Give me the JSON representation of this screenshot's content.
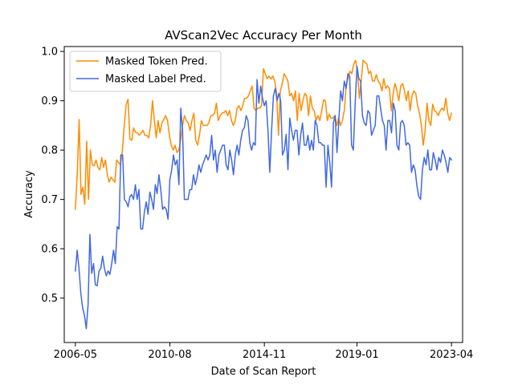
{
  "chart_data": {
    "type": "line",
    "title": "AVScan2Vec Accuracy Per Month",
    "xlabel": "Date of Scan Report",
    "ylabel": "Accuracy",
    "x_start": "2006-05",
    "x_end": "2023-04",
    "xlim": [
      "2005-11",
      "2023-10"
    ],
    "ylim": [
      0.41,
      1.01
    ],
    "x_ticks": [
      "2006-05",
      "2010-08",
      "2014-11",
      "2019-01",
      "2023-04"
    ],
    "y_ticks": [
      0.5,
      0.6,
      0.7,
      0.8,
      0.9,
      1.0
    ],
    "y_tick_labels": [
      "0.5",
      "0.6",
      "0.7",
      "0.8",
      "0.9",
      "1.0"
    ],
    "legend_position": "top-left",
    "grid": false,
    "series": [
      {
        "name": "Masked Token Pred.",
        "color": "#ff8c00",
        "values": [
          0.68,
          0.75,
          0.862,
          0.71,
          0.725,
          0.69,
          0.818,
          0.7,
          0.8,
          0.77,
          0.768,
          0.78,
          0.765,
          0.76,
          0.785,
          0.765,
          0.78,
          0.75,
          0.735,
          0.745,
          0.74,
          0.735,
          0.78,
          0.775,
          0.77,
          0.8,
          0.85,
          0.892,
          0.903,
          0.822,
          0.82,
          0.845,
          0.836,
          0.835,
          0.83,
          0.835,
          0.84,
          0.83,
          0.83,
          0.825,
          0.85,
          0.9,
          0.86,
          0.825,
          0.86,
          0.835,
          0.855,
          0.862,
          0.87,
          0.86,
          0.83,
          0.81,
          0.8,
          0.81,
          0.795,
          0.8,
          0.82,
          0.85,
          0.87,
          0.86,
          0.855,
          0.84,
          0.86,
          0.875,
          0.82,
          0.81,
          0.83,
          0.86,
          0.85,
          0.85,
          0.85,
          0.855,
          0.87,
          0.87,
          0.875,
          0.895,
          0.86,
          0.87,
          0.875,
          0.876,
          0.88,
          0.87,
          0.88,
          0.86,
          0.85,
          0.86,
          0.885,
          0.89,
          0.88,
          0.89,
          0.905,
          0.905,
          0.91,
          0.92,
          0.93,
          0.885,
          0.88,
          0.885,
          0.885,
          0.89,
          0.965,
          0.955,
          0.945,
          0.95,
          0.944,
          0.95,
          0.94,
          0.915,
          0.83,
          0.92,
          0.935,
          0.955,
          0.948,
          0.94,
          0.91,
          0.915,
          0.9,
          0.92,
          0.86,
          0.915,
          0.88,
          0.9,
          0.915,
          0.91,
          0.87,
          0.91,
          0.885,
          0.88,
          0.86,
          0.87,
          0.86,
          0.88,
          0.902,
          0.9,
          0.86,
          0.873,
          0.864,
          0.865,
          0.87,
          0.85,
          0.865,
          0.85,
          0.86,
          0.88,
          0.93,
          0.945,
          0.96,
          0.955,
          0.974,
          0.982,
          0.96,
          0.905,
          0.94,
          0.982,
          0.978,
          0.975,
          0.955,
          0.96,
          0.94,
          0.94,
          0.953,
          0.94,
          0.935,
          0.92,
          0.945,
          0.925,
          0.93,
          0.925,
          0.88,
          0.915,
          0.935,
          0.92,
          0.9,
          0.93,
          0.935,
          0.92,
          0.9,
          0.92,
          0.88,
          0.91,
          0.92,
          0.915,
          0.89,
          0.875,
          0.85,
          0.81,
          0.84,
          0.895,
          0.86,
          0.85,
          0.893,
          0.88,
          0.877,
          0.87,
          0.88,
          0.885,
          0.88,
          0.905,
          0.875,
          0.86,
          0.875
        ]
      },
      {
        "name": "Masked Label Pred.",
        "color": "#4169e1",
        "values": [
          0.555,
          0.597,
          0.56,
          0.51,
          0.48,
          0.465,
          0.438,
          0.487,
          0.629,
          0.55,
          0.57,
          0.527,
          0.525,
          0.555,
          0.56,
          0.585,
          0.56,
          0.545,
          0.555,
          0.548,
          0.57,
          0.597,
          0.57,
          0.645,
          0.64,
          0.79,
          0.79,
          0.7,
          0.695,
          0.685,
          0.705,
          0.71,
          0.7,
          0.73,
          0.7,
          0.72,
          0.64,
          0.64,
          0.675,
          0.695,
          0.67,
          0.715,
          0.7,
          0.68,
          0.73,
          0.712,
          0.75,
          0.72,
          0.68,
          0.685,
          0.68,
          0.66,
          0.74,
          0.76,
          0.79,
          0.77,
          0.78,
          0.73,
          0.885,
          0.84,
          0.7,
          0.7,
          0.7,
          0.72,
          0.72,
          0.75,
          0.73,
          0.745,
          0.77,
          0.755,
          0.77,
          0.78,
          0.79,
          0.78,
          0.79,
          0.83,
          0.78,
          0.8,
          0.755,
          0.79,
          0.8,
          0.81,
          0.81,
          0.77,
          0.76,
          0.8,
          0.78,
          0.75,
          0.79,
          0.81,
          0.79,
          0.82,
          0.84,
          0.845,
          0.87,
          0.86,
          0.815,
          0.8,
          0.815,
          0.81,
          0.943,
          0.895,
          0.93,
          0.905,
          0.89,
          0.9,
          0.84,
          0.755,
          0.84,
          0.91,
          0.925,
          0.9,
          0.915,
          0.9,
          0.79,
          0.8,
          0.832,
          0.76,
          0.865,
          0.84,
          0.82,
          0.84,
          0.84,
          0.79,
          0.83,
          0.855,
          0.81,
          0.81,
          0.83,
          0.8,
          0.82,
          0.8,
          0.86,
          0.85,
          0.815,
          0.815,
          0.81,
          0.81,
          0.725,
          0.81,
          0.775,
          0.725,
          0.855,
          0.87,
          0.795,
          0.86,
          0.92,
          0.9,
          0.94,
          0.925,
          0.955,
          0.95,
          0.81,
          0.8,
          0.895,
          0.97,
          0.945,
          0.94,
          0.87,
          0.855,
          0.85,
          0.88,
          0.875,
          0.83,
          0.84,
          0.85,
          0.91,
          0.91,
          0.885,
          0.86,
          0.85,
          0.8,
          0.86,
          0.86,
          0.835,
          0.895,
          0.88,
          0.81,
          0.8,
          0.855,
          0.86,
          0.85,
          0.81,
          0.815,
          0.81,
          0.755,
          0.77,
          0.76,
          0.727,
          0.706,
          0.7,
          0.76,
          0.785,
          0.77,
          0.8,
          0.76,
          0.76,
          0.795,
          0.78,
          0.76,
          0.785,
          0.775,
          0.8,
          0.79,
          0.775,
          0.755,
          0.785,
          0.78
        ]
      }
    ]
  }
}
